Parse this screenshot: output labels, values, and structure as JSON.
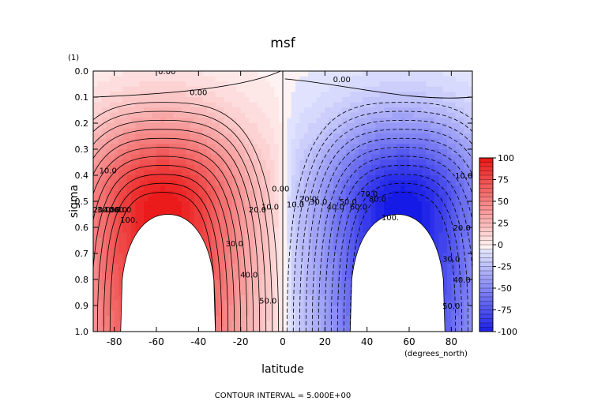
{
  "chart_data": {
    "type": "heatmap",
    "title": "msf",
    "xlabel": "latitude",
    "ylabel": "sigma",
    "x_unit": "(degrees_north)",
    "y_unit": "(1)",
    "xlim": [
      -90,
      90
    ],
    "ylim": [
      1.0,
      0.0
    ],
    "x_ticks": [
      "-80",
      "-60",
      "-40",
      "-20",
      "0",
      "20",
      "40",
      "60",
      "80"
    ],
    "x_tick_values": [
      -80,
      -60,
      -40,
      -20,
      0,
      20,
      40,
      60,
      80
    ],
    "y_ticks": [
      "0.0",
      "0.1",
      "0.2",
      "0.3",
      "0.4",
      "0.5",
      "0.6",
      "0.7",
      "0.8",
      "0.9",
      "1.0"
    ],
    "y_tick_values": [
      0,
      0.1,
      0.2,
      0.3,
      0.4,
      0.5,
      0.6,
      0.7,
      0.8,
      0.9,
      1.0
    ],
    "colorbar": {
      "min": -100,
      "max": 100,
      "ticks": [
        "100",
        "75",
        "50",
        "25",
        "0",
        "-25",
        "-50",
        "-75",
        "-100"
      ],
      "tick_values": [
        100,
        75,
        50,
        25,
        0,
        -25,
        -50,
        -75,
        -100
      ]
    },
    "footer": "CONTOUR INTERVAL = 5.000E+00",
    "contour_interval": 5,
    "cells": [
      {
        "name": "southern-cell",
        "sign": "positive",
        "center_lat": -57,
        "center_sigma": 0.52,
        "max": 100
      },
      {
        "name": "northern-cell",
        "sign": "negative",
        "center_lat": 57,
        "center_sigma": 0.52,
        "min": -100
      }
    ],
    "missing_regions": [
      {
        "name": "southern-blank",
        "lat_range": [
          -77,
          -32
        ],
        "sigma_top": 0.55
      },
      {
        "name": "northern-blank",
        "lat_range": [
          32,
          77
        ],
        "sigma_top": 0.55
      }
    ],
    "contour_labels": [
      {
        "text": "0.00",
        "lat": -55,
        "sigma": 0.0
      },
      {
        "text": "0.00",
        "lat": -40,
        "sigma": 0.08
      },
      {
        "text": "0.00",
        "lat": 28,
        "sigma": 0.03
      },
      {
        "text": "0.00",
        "lat": -1,
        "sigma": 0.45
      },
      {
        "text": "10.0",
        "lat": -83,
        "sigma": 0.38
      },
      {
        "text": "10.0",
        "lat": -6,
        "sigma": 0.52
      },
      {
        "text": "20.0",
        "lat": -12,
        "sigma": 0.53
      },
      {
        "text": "30.0",
        "lat": -23,
        "sigma": 0.66
      },
      {
        "text": "40.0",
        "lat": -16,
        "sigma": 0.78
      },
      {
        "text": "50.0",
        "lat": -7,
        "sigma": 0.88
      },
      {
        "text": "100.",
        "lat": -73,
        "sigma": 0.57
      },
      {
        "text": "10.0",
        "lat": 6,
        "sigma": 0.51
      },
      {
        "text": "20.0",
        "lat": 12,
        "sigma": 0.49
      },
      {
        "text": "30.0",
        "lat": 17,
        "sigma": 0.5
      },
      {
        "text": "40.0",
        "lat": 25,
        "sigma": 0.52
      },
      {
        "text": "50.0",
        "lat": 31,
        "sigma": 0.5
      },
      {
        "text": "60.0",
        "lat": 36,
        "sigma": 0.52
      },
      {
        "text": "70.0",
        "lat": 41,
        "sigma": 0.47
      },
      {
        "text": "80.0",
        "lat": 45,
        "sigma": 0.49
      },
      {
        "text": "100.",
        "lat": 51,
        "sigma": 0.56
      },
      {
        "text": "10.0",
        "lat": 86,
        "sigma": 0.4
      },
      {
        "text": "20.0",
        "lat": 85,
        "sigma": 0.6
      },
      {
        "text": "30.0",
        "lat": 80,
        "sigma": 0.72
      },
      {
        "text": "40.0",
        "lat": 85,
        "sigma": 0.8
      },
      {
        "text": "50.0",
        "lat": 80,
        "sigma": 0.9
      },
      {
        "text": "20.0",
        "lat": -86,
        "sigma": 0.53
      },
      {
        "text": "30.0",
        "lat": -84,
        "sigma": 0.53
      },
      {
        "text": "40.0",
        "lat": -81,
        "sigma": 0.53
      },
      {
        "text": "50.0",
        "lat": -78,
        "sigma": 0.53
      },
      {
        "text": "60.0",
        "lat": -76,
        "sigma": 0.53
      }
    ]
  }
}
